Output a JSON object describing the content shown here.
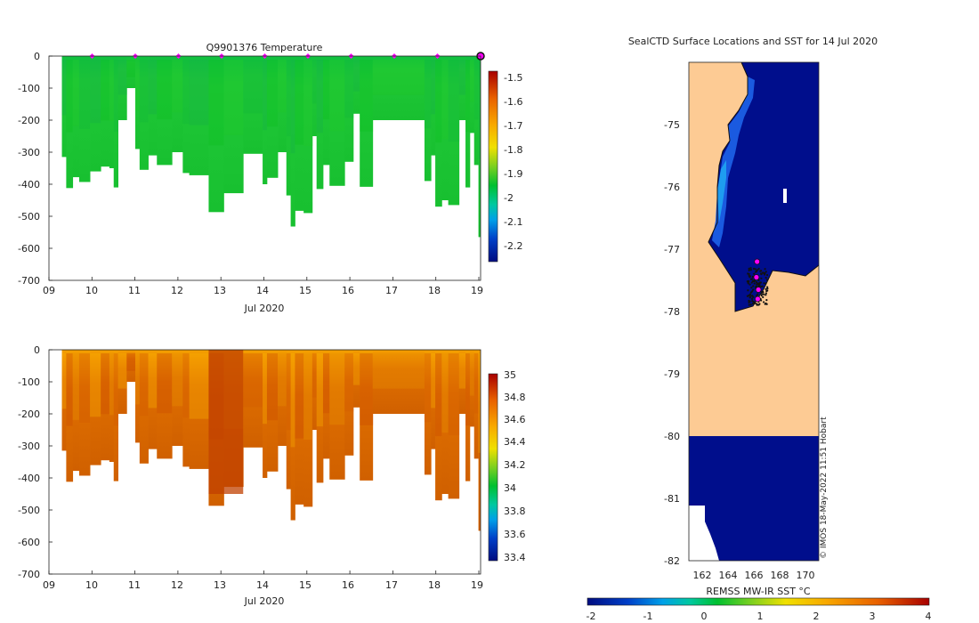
{
  "chart_data": [
    {
      "type": "heatmap",
      "id": "temperature",
      "title": "Q9901376  Temperature",
      "xlabel": "Jul 2020",
      "ylabel": "",
      "x_ticks": [
        "09",
        "10",
        "11",
        "12",
        "13",
        "14",
        "15",
        "16",
        "17",
        "18",
        "19"
      ],
      "y_ticks": [
        "0",
        "-100",
        "-200",
        "-300",
        "-400",
        "-500",
        "-600",
        "-700"
      ],
      "xlim": [
        9,
        19
      ],
      "ylim": [
        -700,
        0
      ],
      "colorbar": {
        "ticks": [
          "-1.5",
          "-1.6",
          "-1.7",
          "-1.8",
          "-1.9",
          "-2",
          "-2.1",
          "-2.2"
        ],
        "min": -2.25,
        "max": -1.5
      },
      "profile_bottoms": [
        {
          "x0": 9.3,
          "x1": 9.4,
          "depth": -315
        },
        {
          "x0": 9.4,
          "x1": 9.55,
          "depth": -412
        },
        {
          "x0": 9.55,
          "x1": 9.7,
          "depth": -378
        },
        {
          "x0": 9.7,
          "x1": 9.95,
          "depth": -393
        },
        {
          "x0": 9.95,
          "x1": 10.2,
          "depth": -360
        },
        {
          "x0": 10.2,
          "x1": 10.4,
          "depth": -345
        },
        {
          "x0": 10.4,
          "x1": 10.5,
          "depth": -350
        },
        {
          "x0": 10.5,
          "x1": 10.6,
          "depth": -410
        },
        {
          "x0": 10.6,
          "x1": 10.8,
          "depth": -200
        },
        {
          "x0": 10.8,
          "x1": 11.0,
          "depth": -100
        },
        {
          "x0": 11.0,
          "x1": 11.1,
          "depth": -290
        },
        {
          "x0": 11.1,
          "x1": 11.3,
          "depth": -355
        },
        {
          "x0": 11.3,
          "x1": 11.5,
          "depth": -310
        },
        {
          "x0": 11.5,
          "x1": 11.85,
          "depth": -340
        },
        {
          "x0": 11.85,
          "x1": 12.1,
          "depth": -300
        },
        {
          "x0": 12.1,
          "x1": 12.25,
          "depth": -365
        },
        {
          "x0": 12.25,
          "x1": 12.7,
          "depth": -372
        },
        {
          "x0": 12.7,
          "x1": 13.05,
          "depth": -487
        },
        {
          "x0": 13.05,
          "x1": 13.5,
          "depth": -428
        },
        {
          "x0": 13.5,
          "x1": 13.95,
          "depth": -305
        },
        {
          "x0": 13.95,
          "x1": 14.05,
          "depth": -400
        },
        {
          "x0": 14.05,
          "x1": 14.3,
          "depth": -380
        },
        {
          "x0": 14.3,
          "x1": 14.5,
          "depth": -300
        },
        {
          "x0": 14.5,
          "x1": 14.6,
          "depth": -435
        },
        {
          "x0": 14.6,
          "x1": 14.7,
          "depth": -532
        },
        {
          "x0": 14.7,
          "x1": 14.9,
          "depth": -483
        },
        {
          "x0": 14.9,
          "x1": 15.1,
          "depth": -490
        },
        {
          "x0": 15.1,
          "x1": 15.2,
          "depth": -250
        },
        {
          "x0": 15.2,
          "x1": 15.35,
          "depth": -415
        },
        {
          "x0": 15.35,
          "x1": 15.5,
          "depth": -340
        },
        {
          "x0": 15.5,
          "x1": 15.85,
          "depth": -405
        },
        {
          "x0": 15.85,
          "x1": 16.05,
          "depth": -330
        },
        {
          "x0": 16.05,
          "x1": 16.2,
          "depth": -180
        },
        {
          "x0": 16.2,
          "x1": 16.5,
          "depth": -408
        },
        {
          "x0": 16.5,
          "x1": 17.7,
          "depth": -200
        },
        {
          "x0": 17.7,
          "x1": 17.85,
          "depth": -390
        },
        {
          "x0": 17.85,
          "x1": 17.95,
          "depth": -310
        },
        {
          "x0": 17.95,
          "x1": 18.1,
          "depth": -470
        },
        {
          "x0": 18.1,
          "x1": 18.25,
          "depth": -450
        },
        {
          "x0": 18.25,
          "x1": 18.5,
          "depth": -465
        },
        {
          "x0": 18.5,
          "x1": 18.65,
          "depth": -200
        },
        {
          "x0": 18.65,
          "x1": 18.75,
          "depth": -410
        },
        {
          "x0": 18.75,
          "x1": 18.85,
          "depth": -240
        },
        {
          "x0": 18.85,
          "x1": 18.95,
          "depth": -340
        },
        {
          "x0": 18.95,
          "x1": 19.1,
          "depth": -565
        }
      ],
      "markers_x": [
        10,
        11,
        12,
        13,
        14,
        15,
        16,
        17,
        18
      ],
      "end_marker_x": 19.0,
      "marker_color": "#ff00ff"
    },
    {
      "type": "heatmap",
      "id": "salinity",
      "title": "",
      "xlabel": "Jul 2020",
      "ylabel": "",
      "x_ticks": [
        "09",
        "10",
        "11",
        "12",
        "13",
        "14",
        "15",
        "16",
        "17",
        "18",
        "19"
      ],
      "y_ticks": [
        "0",
        "-100",
        "-200",
        "-300",
        "-400",
        "-500",
        "-600",
        "-700"
      ],
      "xlim": [
        9,
        19
      ],
      "ylim": [
        -700,
        0
      ],
      "colorbar": {
        "ticks": [
          "35",
          "34.8",
          "34.6",
          "34.4",
          "34.2",
          "34",
          "33.8",
          "33.6",
          "33.4"
        ],
        "min": 33.35,
        "max": 35
      }
    },
    {
      "type": "heatmap",
      "id": "sst-map",
      "title": "SealCTD Surface Locations and SST for 14 Jul 2020",
      "xlabel": "",
      "ylabel": "",
      "x_ticks": [
        "162",
        "164",
        "166",
        "168",
        "170"
      ],
      "y_ticks": [
        "-75",
        "-76",
        "-77",
        "-78",
        "-79",
        "-80",
        "-81",
        "-82"
      ],
      "xlim": [
        161,
        171
      ],
      "ylim": [
        -82,
        -74
      ],
      "colorbar": {
        "label": "REMSS MW-IR SST °C",
        "ticks": [
          "-2",
          "-1",
          "0",
          "1",
          "2",
          "3",
          "4"
        ],
        "min": -2,
        "max": 4
      },
      "land_color": "#fdcb94",
      "ocean_color": "#000e8c",
      "credit": "© IMOS 18-May-2022 11:51 Hobart",
      "surface_positions": [
        {
          "lon": 166.25,
          "lat": -77.2
        },
        {
          "lon": 166.2,
          "lat": -77.45
        },
        {
          "lon": 166.35,
          "lat": -77.65
        },
        {
          "lon": 166.3,
          "lat": -77.8
        }
      ]
    }
  ]
}
